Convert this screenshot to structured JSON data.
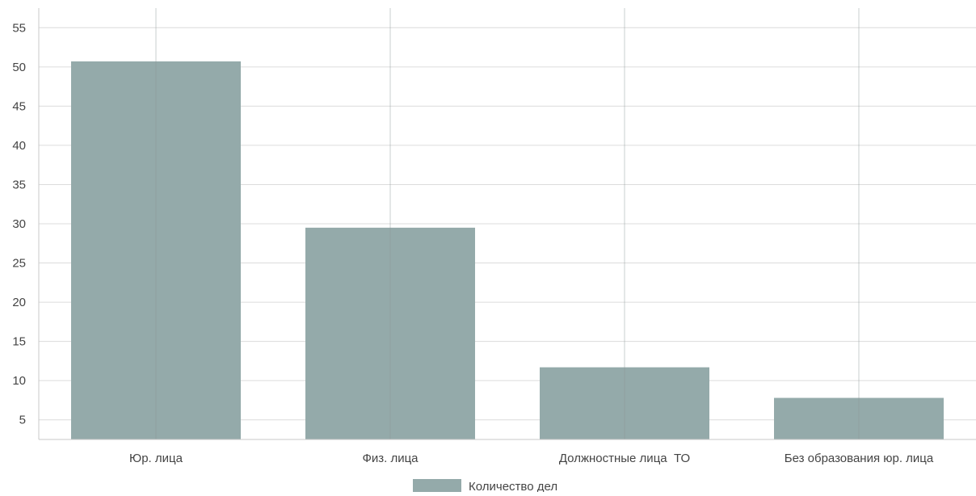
{
  "chart_data": {
    "type": "bar",
    "categories": [
      "Юр. лица",
      "Физ. лица",
      "Должностные лица  ТО",
      "Без образования юр. лица"
    ],
    "series": [
      {
        "name": "Количество дел",
        "values": [
          50.7,
          29.5,
          11.7,
          7.8
        ]
      }
    ],
    "ylim": [
      2.5,
      57.5
    ],
    "yticks": [
      5,
      10,
      15,
      20,
      25,
      30,
      35,
      40,
      45,
      50,
      55
    ],
    "grid": true,
    "legend": "bottom-center",
    "colors": {
      "bar": "#94aaaa",
      "grid": "#dcdcdc",
      "axis": "#c8c8c8",
      "text": "#444444"
    }
  }
}
